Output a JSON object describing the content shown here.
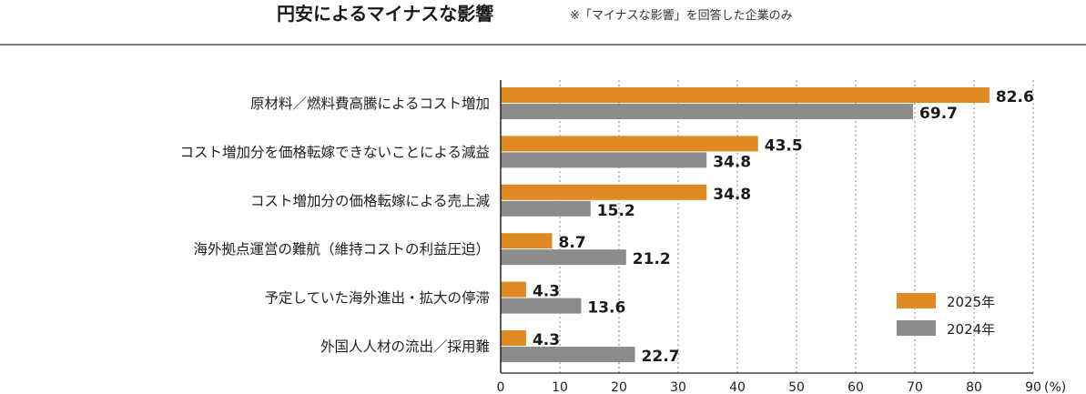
{
  "title": "円安によるマイナスな影響",
  "note": "※「マイナスな影響」を回答した企業のみ",
  "chart_data": {
    "type": "bar",
    "orientation": "horizontal",
    "categories": [
      "原材料／燃料費高騰によるコスト増加",
      "コスト増加分を価格転嫁できないことによる減益",
      "コスト増加分の価格転嫁による売上減",
      "海外拠点運営の難航（維持コストの利益圧迫）",
      "予定していた海外進出・拡大の停滞",
      "外国人人材の流出／採用難"
    ],
    "series": [
      {
        "name": "2025年",
        "color": "#e08a24",
        "values": [
          82.6,
          43.5,
          34.8,
          8.7,
          4.3,
          4.3
        ],
        "labels": [
          "82.6",
          "43.5",
          "34.8",
          "8.7",
          "4.3",
          "4.3"
        ]
      },
      {
        "name": "2024年",
        "color": "#8c8c8c",
        "values": [
          69.7,
          34.8,
          15.2,
          21.2,
          13.6,
          22.7
        ],
        "labels": [
          "69.7",
          "34.8",
          "15.2",
          "21.2",
          "13.6",
          "22.7"
        ]
      }
    ],
    "xlim": [
      0,
      90
    ],
    "ticks": [
      "0",
      "10",
      "20",
      "30",
      "40",
      "50",
      "60",
      "70",
      "80",
      "90"
    ],
    "unit": "(%)",
    "grid": true,
    "legend_position": "bottom-right"
  }
}
